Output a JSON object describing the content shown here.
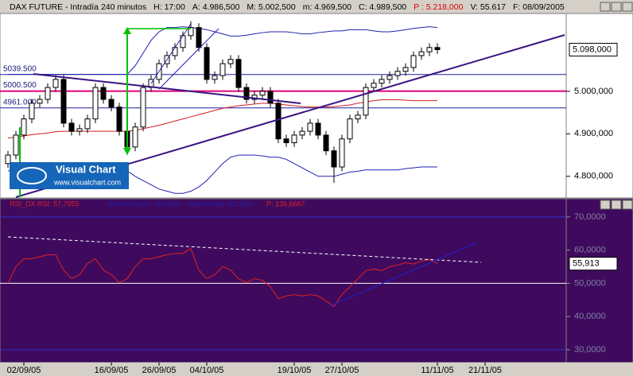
{
  "header": [
    "DAX FUTURE - Intradía 240 minutos",
    "H: 17:00",
    "A: 4.986,500",
    "M: 5.002,500",
    "m: 4.969,500",
    "C: 4.989,500",
    "P : 5.218,000",
    "V: 55.617",
    "F: 08/09/2005"
  ],
  "logo": {
    "title": "Visual Chart",
    "url": "www.visualchart.com"
  },
  "chart_data": [
    {
      "type": "candlestick",
      "x": [
        0,
        1,
        2,
        3,
        4,
        5,
        6,
        7,
        8,
        9,
        10,
        11,
        12,
        13,
        14,
        15,
        16,
        17,
        18,
        19,
        20,
        21,
        22,
        23,
        24,
        25,
        26,
        27,
        28,
        29,
        30,
        31,
        32,
        33,
        34,
        35,
        36,
        37,
        38,
        39,
        40,
        41,
        42,
        43,
        44,
        45,
        46,
        47,
        48,
        49,
        50,
        51,
        52,
        53,
        54
      ],
      "xlim": [
        -1,
        70.2
      ],
      "xticks": [
        {
          "value": 2,
          "label": "02/09/05"
        },
        {
          "value": 13,
          "label": "16/09/05"
        },
        {
          "value": 19,
          "label": "26/09/05"
        },
        {
          "value": 25,
          "label": "04/10/05"
        },
        {
          "value": 36,
          "label": "19/10/05"
        },
        {
          "value": 42,
          "label": "27/10/05"
        },
        {
          "value": 54,
          "label": "11/11/05"
        },
        {
          "value": 60,
          "label": "21/11/05"
        }
      ],
      "open": [
        4830,
        4850,
        4897,
        4935,
        4972,
        4981,
        5009,
        5028,
        4925,
        4906,
        4912,
        4935,
        5009,
        4981,
        4963,
        4906,
        4869,
        4916,
        5009,
        5028,
        5065,
        5084,
        5103,
        5131,
        5150,
        5103,
        5028,
        5037,
        5065,
        5075,
        5009,
        4981,
        4991,
        5000,
        4972,
        4888,
        4879,
        4897,
        4906,
        4925,
        4897,
        4860,
        4822,
        4888,
        4935,
        4944,
        5009,
        5019,
        5028,
        5037,
        5047,
        5056,
        5084,
        5093,
        5103
      ],
      "high": [
        4860,
        4907,
        4945,
        4982,
        4991,
        5019,
        5038,
        5038,
        4935,
        4922,
        4945,
        5019,
        5019,
        4991,
        4973,
        4916,
        4926,
        5019,
        5038,
        5075,
        5094,
        5113,
        5141,
        5165,
        5160,
        5113,
        5047,
        5075,
        5085,
        5085,
        5019,
        5001,
        5010,
        5010,
        4982,
        4898,
        4907,
        4916,
        4935,
        4935,
        4907,
        4870,
        4898,
        4945,
        4954,
        5019,
        5029,
        5038,
        5047,
        5057,
        5066,
        5094,
        5103,
        5113,
        5113
      ],
      "low": [
        4820,
        4840,
        4887,
        4925,
        4962,
        4971,
        4999,
        4915,
        4896,
        4896,
        4902,
        4925,
        4971,
        4953,
        4896,
        4850,
        4859,
        4906,
        4999,
        5018,
        5055,
        5074,
        5093,
        5121,
        5093,
        5018,
        5018,
        5027,
        5055,
        4999,
        4971,
        4971,
        4981,
        4962,
        4878,
        4869,
        4869,
        4887,
        4896,
        4887,
        4850,
        4785,
        4812,
        4878,
        4925,
        4934,
        4999,
        5009,
        5018,
        5027,
        5037,
        5046,
        5074,
        5083,
        5088
      ],
      "close": [
        4850,
        4897,
        4935,
        4972,
        4981,
        5009,
        5028,
        4925,
        4906,
        4912,
        4935,
        5009,
        4981,
        4963,
        4906,
        4869,
        4916,
        5009,
        5028,
        5065,
        5084,
        5103,
        5131,
        5150,
        5103,
        5028,
        5037,
        5065,
        5075,
        5009,
        4981,
        4991,
        5000,
        4972,
        4888,
        4879,
        4897,
        4906,
        4925,
        4897,
        4860,
        4822,
        4888,
        4935,
        4944,
        5009,
        5019,
        5028,
        5037,
        5047,
        5056,
        5084,
        5093,
        5103,
        5098
      ],
      "lines": [
        {
          "color": "#2020b0",
          "values": [
            5040,
            5040,
            5040,
            5040,
            5040,
            5040,
            5040,
            5040,
            5040,
            5040,
            5040,
            5040,
            5040,
            5040,
            5040,
            5040,
            5060,
            5090,
            5120,
            5140,
            5150,
            5150,
            5152,
            5150,
            5148,
            5145,
            5140,
            5135,
            5130,
            5130,
            5132,
            5135,
            5138,
            5140,
            5140,
            5140,
            5138,
            5135,
            5135,
            5138,
            5140,
            5142,
            5142,
            5145,
            5145,
            5145,
            5142,
            5140,
            5140,
            5142,
            5145,
            5148,
            5150,
            5152,
            5150
          ]
        },
        {
          "color": "#2020b0",
          "values": [
            4813,
            4813,
            4813,
            4813,
            4813,
            4813,
            4813,
            4813,
            4813,
            4813,
            4813,
            4813,
            4813,
            4813,
            4813,
            4813,
            4800,
            4790,
            4780,
            4770,
            4765,
            4760,
            4760,
            4765,
            4775,
            4790,
            4810,
            4830,
            4845,
            4850,
            4850,
            4850,
            4848,
            4845,
            4845,
            4840,
            4830,
            4820,
            4810,
            4800,
            4800,
            4800,
            4805,
            4810,
            4812,
            4815,
            4815,
            4815,
            4815,
            4815,
            4818,
            4820,
            4822,
            4822,
            4822
          ]
        },
        {
          "color": "#d02020",
          "values": [
            4890,
            4892,
            4895,
            4898,
            4900,
            4902,
            4905,
            4906,
            4906,
            4906,
            4906,
            4906,
            4906,
            4906,
            4906,
            4906,
            4908,
            4912,
            4916,
            4920,
            4925,
            4930,
            4935,
            4940,
            4945,
            4950,
            4955,
            4960,
            4963,
            4966,
            4968,
            4970,
            4972,
            4972,
            4970,
            4968,
            4966,
            4964,
            4963,
            4963,
            4963,
            4964,
            4966,
            4968,
            4972,
            4975,
            4978,
            4980,
            4980,
            4980,
            4979,
            4978,
            4978,
            4978,
            4978
          ]
        }
      ],
      "levels": [
        {
          "value": 5039.5,
          "label": "5039.500",
          "color": "#2020a0"
        },
        {
          "value": 5000.5,
          "label": "5000.500",
          "color": "#e0007a"
        },
        {
          "value": 4961,
          "label": "4961.000",
          "color": "#2020a0"
        }
      ],
      "ylim": [
        4751,
        5183
      ],
      "yticks": [
        {
          "value": 4800,
          "label": "4.800,000"
        },
        {
          "value": 4900,
          "label": "4.900,000"
        },
        {
          "value": 5000,
          "label": "5.000,000"
        }
      ],
      "last": {
        "value": 5098,
        "label": "5.098,000"
      }
    },
    {
      "type": "line",
      "texts": [
        "RSI_DX RSI: 57,7955",
        "Sobrecompra: 70,0000",
        "Sobreventa: 30,0000",
        "P: 136,6667"
      ],
      "color": "#e02020",
      "values": [
        50,
        55,
        57.4,
        57.4,
        58,
        58.6,
        58.6,
        54,
        51.4,
        52.6,
        56,
        57.4,
        54,
        52.6,
        50.2,
        51.4,
        55,
        57.4,
        57.4,
        58,
        58.6,
        59,
        59,
        60.5,
        54,
        51.4,
        52.6,
        55,
        54,
        51.4,
        50.2,
        51.4,
        50.9,
        49,
        45.4,
        46.2,
        46.6,
        46.2,
        46.6,
        46.2,
        44.7,
        43,
        46.6,
        49,
        51.4,
        53.8,
        54.3,
        53.8,
        55,
        55.5,
        56.2,
        55.8,
        56.7,
        57.2,
        55.913
      ],
      "hlines": [
        {
          "value": 70,
          "color": "#3030c8"
        },
        {
          "value": 50,
          "color": "#ffffff"
        },
        {
          "value": 30,
          "color": "#3030c8"
        }
      ],
      "ylim": [
        26.4,
        72.6
      ],
      "yticks": [
        {
          "value": 30,
          "label": "30,0000"
        },
        {
          "value": 40,
          "label": "40,0000"
        },
        {
          "value": 50,
          "label": "50,0000"
        },
        {
          "value": 60,
          "label": "60,0000"
        },
        {
          "value": 70,
          "label": "70,0000"
        }
      ],
      "last": {
        "value": 55.913,
        "label": "55,913"
      }
    }
  ]
}
